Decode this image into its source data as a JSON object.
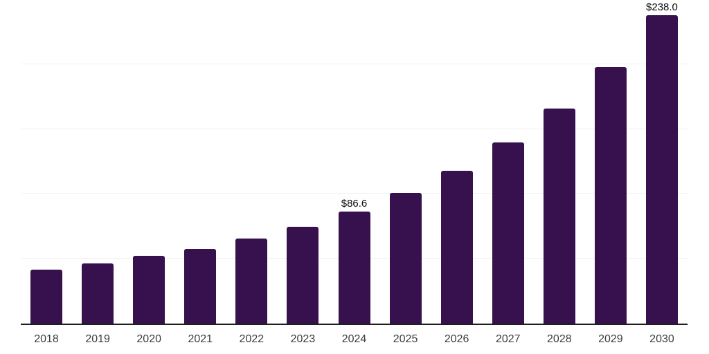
{
  "chart_data": {
    "type": "bar",
    "title": "",
    "xlabel": "",
    "ylabel": "",
    "categories": [
      "2018",
      "2019",
      "2020",
      "2021",
      "2022",
      "2023",
      "2024",
      "2025",
      "2026",
      "2027",
      "2028",
      "2029",
      "2030"
    ],
    "values": [
      41.4,
      46.2,
      52.0,
      57.7,
      65.5,
      74.7,
      86.6,
      100.9,
      117.9,
      139.5,
      165.8,
      197.8,
      238.0
    ],
    "value_labels": [
      "",
      "",
      "",
      "",
      "",
      "",
      "$86.6",
      "",
      "",
      "",
      "",
      "",
      "$238.0"
    ],
    "ylim": [
      0,
      250
    ],
    "gridline_values": [
      50,
      100,
      150,
      200,
      250
    ],
    "grid": "horizontal",
    "y_axis_tick_labels": "none",
    "legend": "none",
    "currency_prefix": "$"
  },
  "colors": {
    "bar": "#36114E",
    "gridline": "#EFEFEF",
    "axis": "#1F1F1F",
    "tick_label": "#3C3C3C",
    "value_label": "#0A0A0A",
    "background": "#FFFFFF"
  }
}
